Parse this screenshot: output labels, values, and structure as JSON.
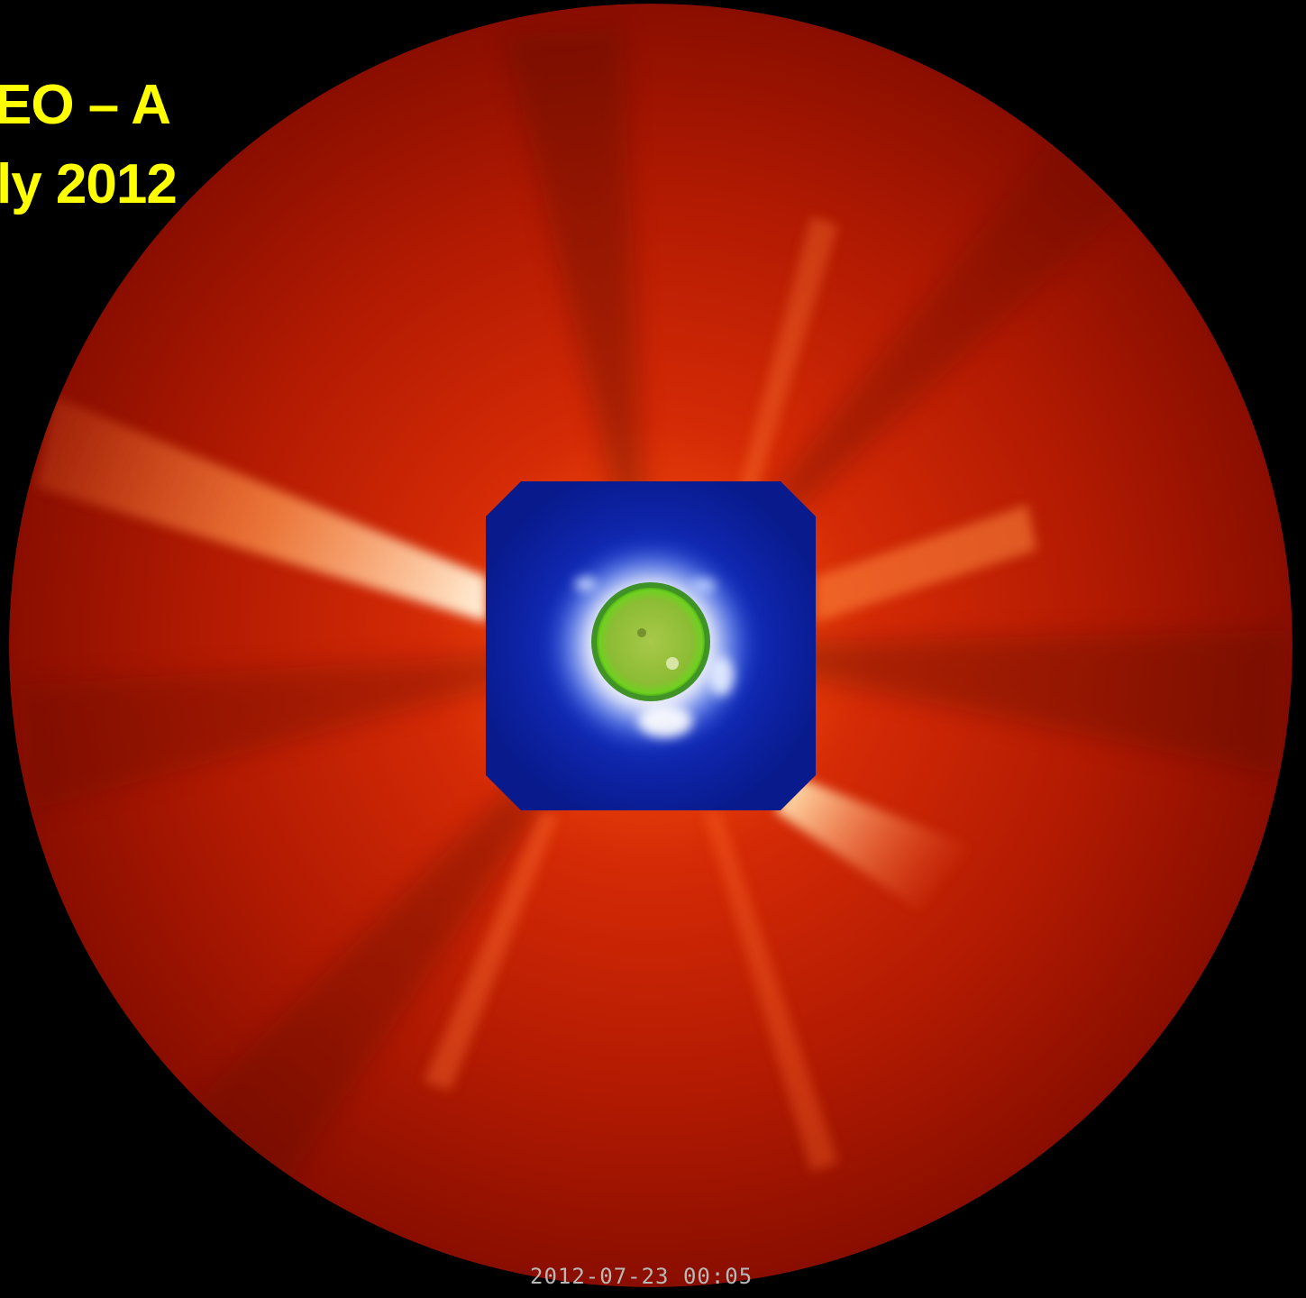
{
  "caption": {
    "line1": "EO – A",
    "line2": "ly 2012",
    "color": "#ffff00"
  },
  "timestamp": {
    "text": "2012-07-23 00:05",
    "color": "#b8b8b8"
  },
  "colors": {
    "background": "#000000",
    "corona_outer": "#b01800",
    "corona_bright": "#ffd8a0",
    "inner_coronagraph": "#0a1a90",
    "inner_bright": "#e8f0ff",
    "solar_disk": "#8ac43a"
  }
}
